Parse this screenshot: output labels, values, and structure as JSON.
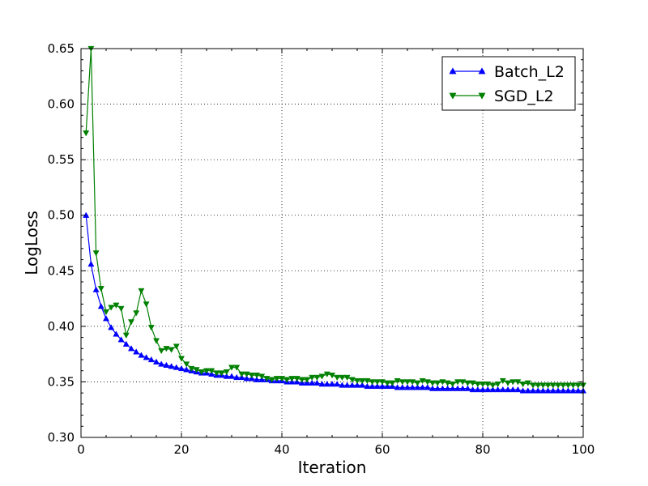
{
  "chart_data": {
    "type": "line",
    "xlabel": "Iteration",
    "ylabel": "LogLoss",
    "xlim": [
      0,
      100
    ],
    "ylim": [
      0.3,
      0.65
    ],
    "xticks": [
      0,
      20,
      40,
      60,
      80,
      100
    ],
    "xtick_labels": [
      "0",
      "20",
      "40",
      "60",
      "80",
      "100"
    ],
    "yticks": [
      0.3,
      0.35,
      0.4,
      0.45,
      0.5,
      0.55,
      0.6,
      0.65
    ],
    "ytick_labels": [
      "0.30",
      "0.35",
      "0.40",
      "0.45",
      "0.50",
      "0.55",
      "0.60",
      "0.65"
    ],
    "grid": true,
    "legend_position": "top-right",
    "series": [
      {
        "name": "Batch_L2",
        "color": "#0000ff",
        "marker": "triangle-up",
        "x": [
          1,
          2,
          3,
          4,
          5,
          6,
          7,
          8,
          9,
          10,
          11,
          12,
          13,
          14,
          15,
          16,
          17,
          18,
          19,
          20,
          21,
          22,
          23,
          24,
          25,
          26,
          27,
          28,
          29,
          30,
          31,
          32,
          33,
          34,
          35,
          36,
          37,
          38,
          39,
          40,
          41,
          42,
          43,
          44,
          45,
          46,
          47,
          48,
          49,
          50,
          51,
          52,
          53,
          54,
          55,
          56,
          57,
          58,
          59,
          60,
          61,
          62,
          63,
          64,
          65,
          66,
          67,
          68,
          69,
          70,
          71,
          72,
          73,
          74,
          75,
          76,
          77,
          78,
          79,
          80,
          81,
          82,
          83,
          84,
          85,
          86,
          87,
          88,
          89,
          90,
          91,
          92,
          93,
          94,
          95,
          96,
          97,
          98,
          99,
          100
        ],
        "values": [
          0.5,
          0.456,
          0.433,
          0.418,
          0.407,
          0.399,
          0.393,
          0.388,
          0.384,
          0.38,
          0.377,
          0.374,
          0.372,
          0.37,
          0.368,
          0.366,
          0.365,
          0.364,
          0.363,
          0.362,
          0.361,
          0.36,
          0.359,
          0.358,
          0.358,
          0.357,
          0.356,
          0.356,
          0.355,
          0.355,
          0.354,
          0.354,
          0.353,
          0.353,
          0.352,
          0.352,
          0.352,
          0.351,
          0.351,
          0.351,
          0.35,
          0.35,
          0.35,
          0.349,
          0.349,
          0.349,
          0.349,
          0.348,
          0.348,
          0.348,
          0.348,
          0.347,
          0.347,
          0.347,
          0.347,
          0.347,
          0.346,
          0.346,
          0.346,
          0.346,
          0.346,
          0.346,
          0.345,
          0.345,
          0.345,
          0.345,
          0.345,
          0.345,
          0.345,
          0.344,
          0.344,
          0.344,
          0.344,
          0.344,
          0.344,
          0.344,
          0.344,
          0.343,
          0.343,
          0.343,
          0.343,
          0.343,
          0.343,
          0.343,
          0.343,
          0.343,
          0.343,
          0.342,
          0.342,
          0.342,
          0.342,
          0.342,
          0.342,
          0.342,
          0.342,
          0.342,
          0.342,
          0.342,
          0.342,
          0.342
        ]
      },
      {
        "name": "SGD_L2",
        "color": "#008000",
        "marker": "triangle-down",
        "x": [
          1,
          2,
          3,
          4,
          5,
          6,
          7,
          8,
          9,
          10,
          11,
          12,
          13,
          14,
          15,
          16,
          17,
          18,
          19,
          20,
          21,
          22,
          23,
          24,
          25,
          26,
          27,
          28,
          29,
          30,
          31,
          32,
          33,
          34,
          35,
          36,
          37,
          38,
          39,
          40,
          41,
          42,
          43,
          44,
          45,
          46,
          47,
          48,
          49,
          50,
          51,
          52,
          53,
          54,
          55,
          56,
          57,
          58,
          59,
          60,
          61,
          62,
          63,
          64,
          65,
          66,
          67,
          68,
          69,
          70,
          71,
          72,
          73,
          74,
          75,
          76,
          77,
          78,
          79,
          80,
          81,
          82,
          83,
          84,
          85,
          86,
          87,
          88,
          89,
          90,
          91,
          92,
          93,
          94,
          95,
          96,
          97,
          98,
          99,
          100
        ],
        "values": [
          0.574,
          0.65,
          0.466,
          0.434,
          0.413,
          0.417,
          0.419,
          0.416,
          0.392,
          0.404,
          0.412,
          0.432,
          0.42,
          0.399,
          0.387,
          0.378,
          0.38,
          0.379,
          0.382,
          0.371,
          0.366,
          0.362,
          0.361,
          0.359,
          0.36,
          0.36,
          0.358,
          0.358,
          0.359,
          0.363,
          0.363,
          0.357,
          0.357,
          0.356,
          0.356,
          0.355,
          0.353,
          0.352,
          0.353,
          0.353,
          0.352,
          0.353,
          0.353,
          0.352,
          0.352,
          0.354,
          0.354,
          0.355,
          0.357,
          0.356,
          0.354,
          0.354,
          0.354,
          0.352,
          0.351,
          0.351,
          0.351,
          0.35,
          0.35,
          0.35,
          0.349,
          0.349,
          0.351,
          0.35,
          0.35,
          0.35,
          0.349,
          0.351,
          0.35,
          0.349,
          0.349,
          0.35,
          0.349,
          0.348,
          0.35,
          0.35,
          0.349,
          0.349,
          0.348,
          0.348,
          0.348,
          0.347,
          0.348,
          0.351,
          0.349,
          0.35,
          0.35,
          0.348,
          0.349,
          0.347,
          0.347,
          0.347,
          0.347,
          0.347,
          0.347,
          0.347,
          0.347,
          0.347,
          0.347,
          0.347
        ]
      }
    ]
  }
}
